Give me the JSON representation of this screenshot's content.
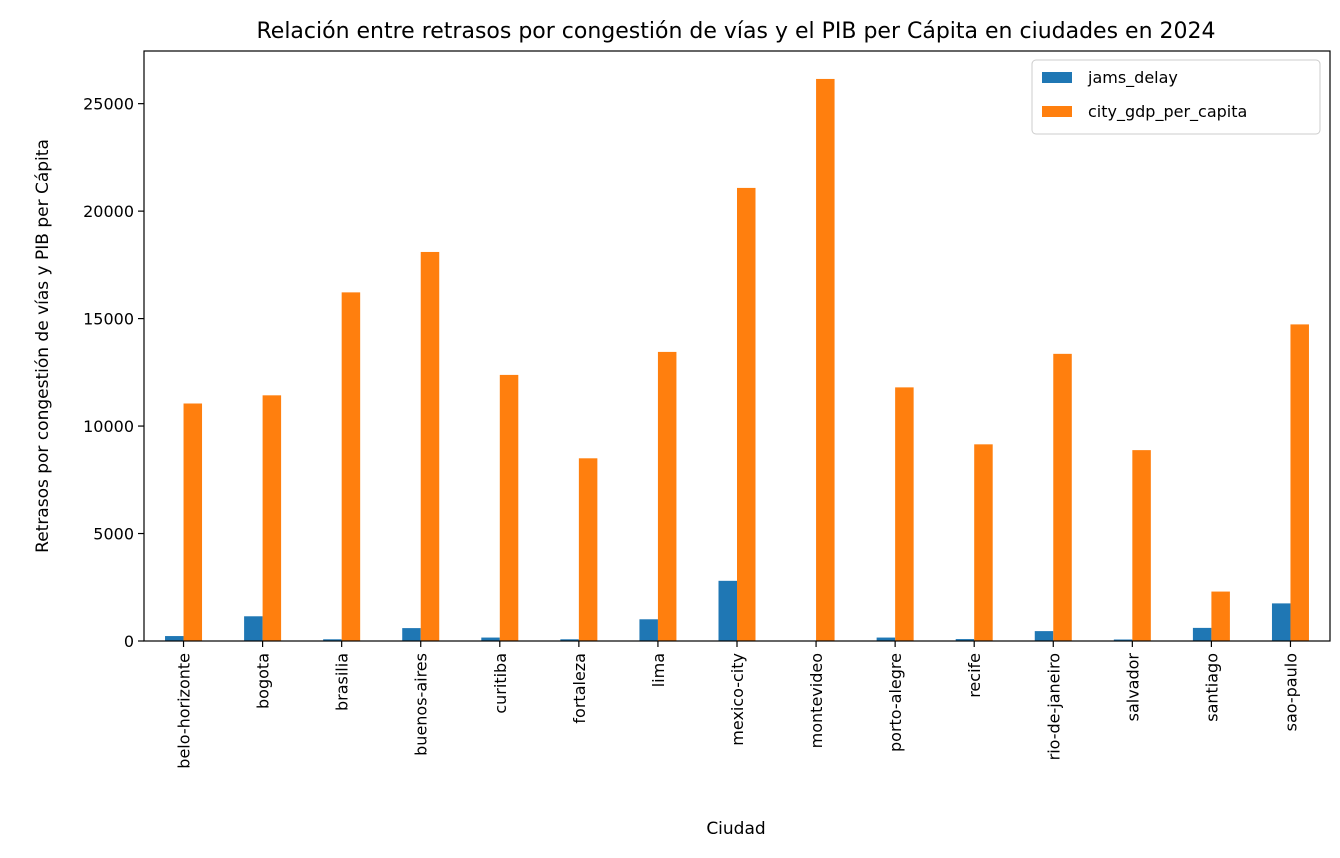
{
  "chart_data": {
    "type": "bar",
    "title": "Relación entre retrasos por congestión de vías y el PIB per Cápita en ciudades en 2024",
    "xlabel": "Ciudad",
    "ylabel": "Retrasos por congestión de vías y PIB per Cápita",
    "ylim": [
      0,
      27450
    ],
    "yticks": [
      0,
      5000,
      10000,
      15000,
      20000,
      25000
    ],
    "grid": false,
    "legend_position": "top-right",
    "categories": [
      "belo-horizonte",
      "bogota",
      "brasilia",
      "buenos-aires",
      "curitiba",
      "fortaleza",
      "lima",
      "mexico-city",
      "montevideo",
      "porto-alegre",
      "recife",
      "rio-de-janeiro",
      "salvador",
      "santiago",
      "sao-paulo"
    ],
    "series": [
      {
        "name": "jams_delay",
        "color": "#1f77b4",
        "values": [
          230,
          1150,
          80,
          600,
          160,
          80,
          1010,
          2800,
          0,
          160,
          90,
          460,
          70,
          610,
          1750
        ]
      },
      {
        "name": "city_gdp_per_capita",
        "color": "#ff7f0e",
        "values": [
          11050,
          11430,
          16220,
          18100,
          12380,
          8500,
          13450,
          21080,
          26150,
          11800,
          9150,
          13360,
          8880,
          2300,
          14730
        ]
      }
    ]
  }
}
